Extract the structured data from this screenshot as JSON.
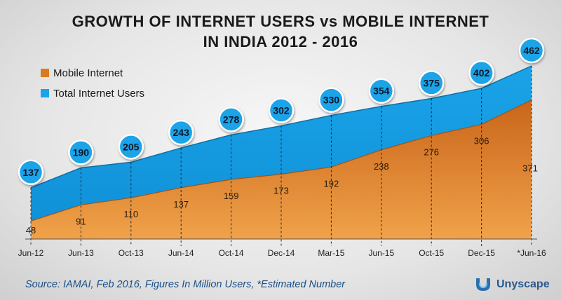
{
  "title_line1": "GROWTH OF INTERNET USERS vs MOBILE INTERNET",
  "title_line2": "IN INDIA 2012 - 2016",
  "source": "Source: IAMAI, Feb 2016, Figures In Million Users, *Estimated Number",
  "brand": "Unyscape",
  "colors": {
    "total": "#1aa3e8",
    "mobile": "#d97b22",
    "bubble_fill": "#1aa3e8",
    "bubble_stroke": "#ffffff"
  },
  "chart_data": {
    "type": "area",
    "title": "GROWTH OF INTERNET USERS vs MOBILE INTERNET IN INDIA 2012 - 2016",
    "legend_position": "top-left",
    "categories": [
      "Jun-12",
      "Jun-13",
      "Oct-13",
      "Jun-14",
      "Oct-14",
      "Dec-14",
      "Mar-15",
      "Jun-15",
      "Oct-15",
      "Dec-15",
      "*Jun-16"
    ],
    "series": [
      {
        "name": "Mobile Internet",
        "values": [
          48,
          91,
          110,
          137,
          159,
          173,
          192,
          238,
          276,
          306,
          371
        ]
      },
      {
        "name": "Total Internet Users",
        "values": [
          137,
          190,
          205,
          243,
          278,
          302,
          330,
          354,
          375,
          402,
          462
        ]
      }
    ],
    "ylim": [
      0,
      470
    ],
    "grid": false,
    "vertical_dashed_lines": true
  }
}
